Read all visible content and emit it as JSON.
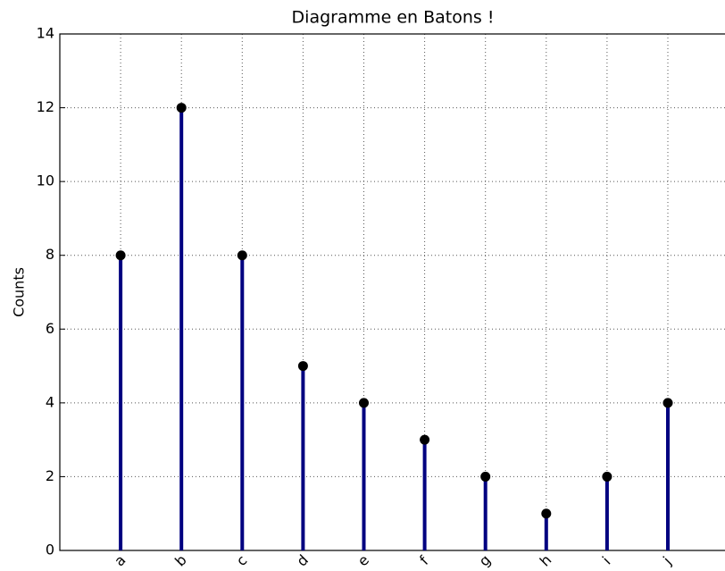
{
  "chart_data": {
    "type": "stem",
    "title": "Diagramme en Batons !",
    "y_label": "Counts",
    "categories": [
      "a",
      "b",
      "c",
      "d",
      "e",
      "f",
      "g",
      "h",
      "i",
      "j"
    ],
    "values": [
      8,
      12,
      8,
      5,
      4,
      3,
      2,
      1,
      2,
      4
    ],
    "color": "#000080",
    "marker_color": "#000000",
    "ylim": [
      0,
      14
    ],
    "yticks": [
      0,
      2,
      4,
      6,
      8,
      10,
      12,
      14
    ],
    "grid": true
  }
}
